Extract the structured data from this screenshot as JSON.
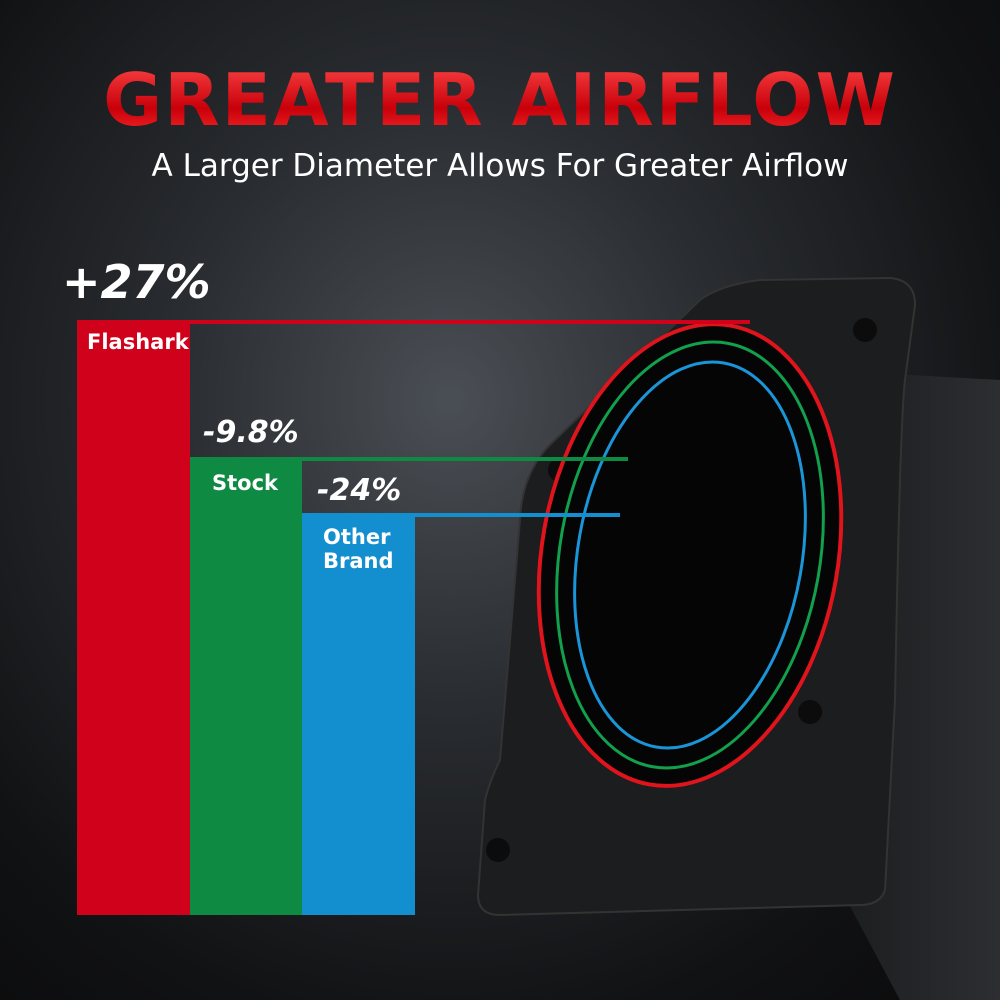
{
  "header": {
    "title": "GREATER AIRFLOW",
    "subtitle": "A Larger Diameter Allows For Greater Airflow"
  },
  "chart_data": {
    "type": "bar",
    "categories": [
      "Flashark",
      "Stock",
      "Other Brand"
    ],
    "value_labels": [
      "+27%",
      "-9.8%",
      "-24%"
    ],
    "relative_height": [
      100,
      77,
      67.5
    ],
    "colors": [
      "#d0021b",
      "#0e8a43",
      "#138fcf"
    ],
    "title": "",
    "xlabel": "",
    "ylabel": "",
    "grid": false
  }
}
